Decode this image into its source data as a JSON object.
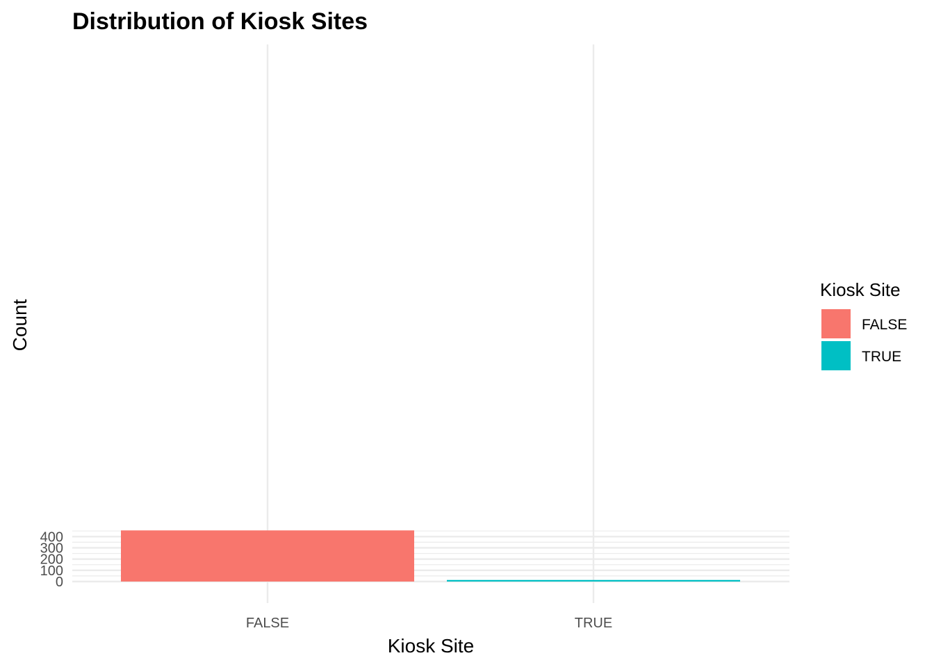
{
  "chart_data": {
    "type": "bar",
    "title": "Distribution of Kiosk Sites",
    "xlabel": "Kiosk Site",
    "ylabel": "Count",
    "categories": [
      "FALSE",
      "TRUE"
    ],
    "values": [
      455,
      14
    ],
    "colors": [
      "#F8766D",
      "#00BFC4"
    ],
    "ylim": [
      0,
      470
    ],
    "yticks": [
      0,
      100,
      200,
      300,
      400
    ],
    "grid": true,
    "legend": {
      "title": "Kiosk Site",
      "position": "right",
      "items": [
        {
          "label": "FALSE",
          "color": "#F8766D"
        },
        {
          "label": "TRUE",
          "color": "#00BFC4"
        }
      ]
    }
  }
}
